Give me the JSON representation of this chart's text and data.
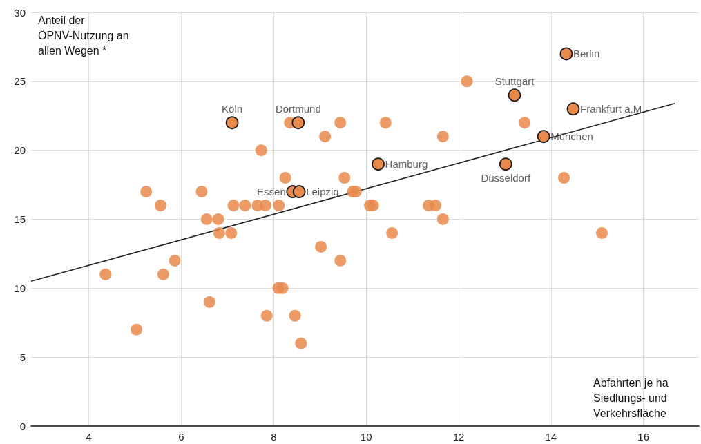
{
  "chart_data": {
    "type": "scatter",
    "xlabel": "Abfahrten je ha Siedlungs- und Verkehrsfläche",
    "ylabel": "Anteil der ÖPNV-Nutzung an allen Wegen *",
    "xlim": [
      2.75,
      17.2
    ],
    "xticks": [
      4,
      6,
      8,
      10,
      12,
      14,
      16
    ],
    "ylim": [
      0,
      30
    ],
    "yticks": [
      0,
      5,
      10,
      15,
      20,
      25,
      30
    ],
    "grid": true,
    "series": [
      {
        "color": "#e9894b",
        "marker": "circle",
        "x": [
          7.73,
          8.25,
          5.24,
          6.44,
          5.55,
          7.13,
          7.38,
          7.65,
          7.82,
          8.11,
          6.55,
          6.8,
          6.82,
          7.08,
          5.86,
          4.36,
          5.61,
          8.1,
          8.19,
          6.61,
          7.85,
          5.03,
          8.35,
          9.44,
          10.42,
          9.11,
          11.66,
          9.53,
          9.71,
          9.78,
          10.08,
          10.15,
          11.35,
          11.5,
          11.66,
          10.56,
          9.02,
          9.44,
          8.46,
          8.59,
          12.18,
          13.43,
          14.28,
          15.1
        ],
        "values": [
          20,
          18,
          17,
          17,
          16,
          16,
          16,
          16,
          16,
          16,
          15,
          15,
          14,
          14,
          12,
          11,
          11,
          10,
          10,
          9,
          8,
          7,
          22,
          22,
          22,
          21,
          21,
          18,
          17,
          17,
          16,
          16,
          16,
          16,
          15,
          14,
          13,
          12,
          8,
          6,
          25,
          22,
          18,
          14
        ]
      },
      {
        "color": "#e9894b",
        "marker": "circle",
        "x": [
          7.1,
          8.53,
          10.26,
          8.41,
          8.55,
          14.33,
          13.21,
          14.48,
          13.84,
          13.02
        ],
        "values": [
          22,
          22,
          19,
          17,
          17,
          27,
          24,
          23,
          21,
          19
        ]
      },
      {
        "type": "line",
        "color": "#222222",
        "marker": "none",
        "x": [
          2.75,
          16.68
        ],
        "values": [
          10.5,
          23.4
        ]
      }
    ],
    "annotations": [
      {
        "text": "Köln",
        "x": 7.1,
        "y": 22
      },
      {
        "text": "Dortmund",
        "x": 8.53,
        "y": 22
      },
      {
        "text": "Hamburg",
        "x": 10.26,
        "y": 19
      },
      {
        "text": "Essen",
        "x": 8.41,
        "y": 17
      },
      {
        "text": "Leipzig",
        "x": 8.55,
        "y": 17
      },
      {
        "text": "Berlin",
        "x": 14.33,
        "y": 27
      },
      {
        "text": "Stuttgart",
        "x": 13.21,
        "y": 24
      },
      {
        "text": "Frankfurt a.M.",
        "x": 14.48,
        "y": 23
      },
      {
        "text": "München",
        "x": 13.84,
        "y": 21
      },
      {
        "text": "Düsseldorf",
        "x": 13.02,
        "y": 19
      }
    ]
  }
}
